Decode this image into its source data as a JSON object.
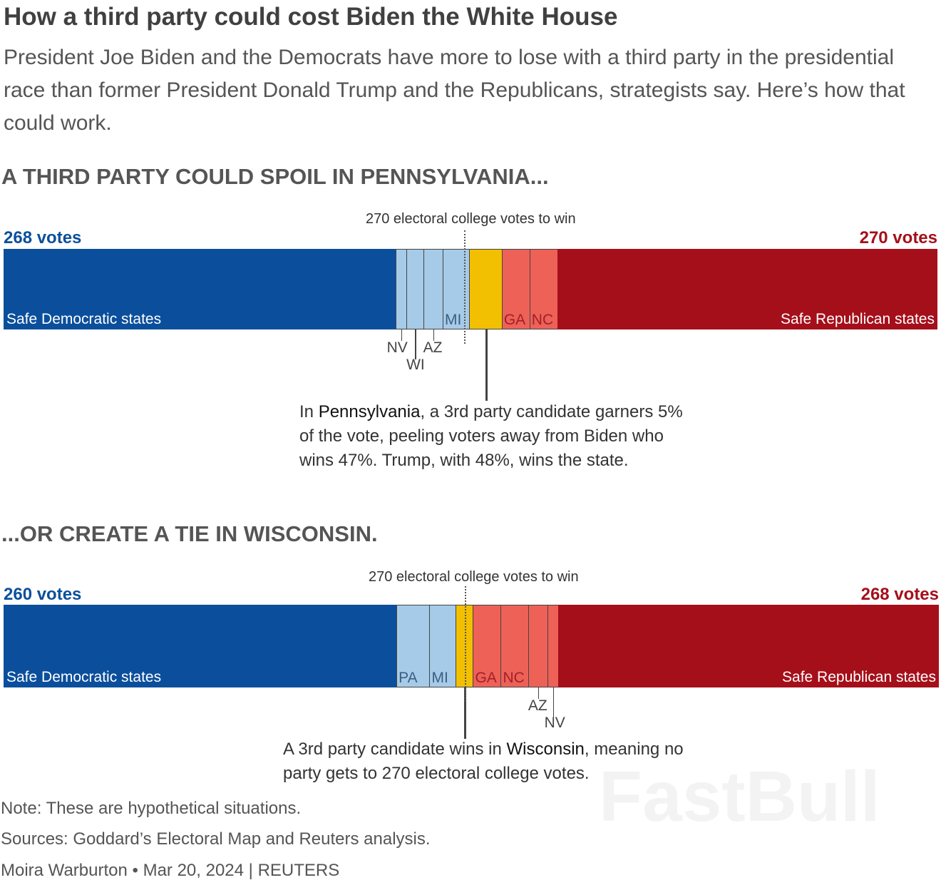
{
  "title": "How a third party could cost Biden the White House",
  "subtitle": "President Joe Biden and the Democrats have more to lose with a third party in the presidential race than former President Donald Trump and the Republicans, strategists say. Here’s how that could work.",
  "colors": {
    "safe_dem": "#0b4f9c",
    "lean_dem": "#a6cbe8",
    "third": "#f2c000",
    "lean_rep": "#ee6157",
    "safe_rep": "#a50f1a"
  },
  "chart_data": [
    {
      "type": "bar",
      "orientation": "stacked-horizontal",
      "title": "A THIRD PARTY COULD SPOIL IN PENNSYLVANIA...",
      "threshold": 270,
      "threshold_label": "270 electoral college votes to win",
      "total": 538,
      "dem_label": "268 votes",
      "rep_label": "270 votes",
      "safe_dem_label": "Safe Democratic states",
      "safe_rep_label": "Safe Republican states",
      "segments": [
        {
          "state": "Safe Democratic states",
          "ev": 226,
          "party": "safe_dem"
        },
        {
          "state": "NV",
          "ev": 6,
          "party": "lean_dem",
          "label": "below"
        },
        {
          "state": "WI",
          "ev": 10,
          "party": "lean_dem",
          "label": "below"
        },
        {
          "state": "AZ",
          "ev": 11,
          "party": "lean_dem",
          "label": "below"
        },
        {
          "state": "MI",
          "ev": 15,
          "party": "lean_dem",
          "label": "inside"
        },
        {
          "state": "PA",
          "ev": 19,
          "party": "third",
          "label": "none"
        },
        {
          "state": "GA",
          "ev": 16,
          "party": "lean_rep",
          "label": "inside"
        },
        {
          "state": "NC",
          "ev": 16,
          "party": "lean_rep",
          "label": "inside"
        },
        {
          "state": "Safe Republican states",
          "ev": 219,
          "party": "safe_rep"
        }
      ],
      "annotation": {
        "pre": "In ",
        "bold": "Pennsylvania",
        "post": ", a 3rd party candidate garners 5% of the vote, peeling voters away from Biden who wins 47%. Trump, with 48%, wins the state."
      }
    },
    {
      "type": "bar",
      "orientation": "stacked-horizontal",
      "title": "...OR CREATE A TIE IN WISCONSIN.",
      "threshold": 270,
      "threshold_label": "270 electoral college votes to win",
      "total": 538,
      "dem_label": "260 votes",
      "rep_label": "268 votes",
      "safe_dem_label": "Safe Democratic states",
      "safe_rep_label": "Safe Republican states",
      "segments": [
        {
          "state": "Safe Democratic states",
          "ev": 226,
          "party": "safe_dem"
        },
        {
          "state": "PA",
          "ev": 19,
          "party": "lean_dem",
          "label": "inside"
        },
        {
          "state": "MI",
          "ev": 15,
          "party": "lean_dem",
          "label": "inside"
        },
        {
          "state": "WI",
          "ev": 10,
          "party": "third",
          "label": "none"
        },
        {
          "state": "GA",
          "ev": 16,
          "party": "lean_rep",
          "label": "inside"
        },
        {
          "state": "NC",
          "ev": 16,
          "party": "lean_rep",
          "label": "inside"
        },
        {
          "state": "AZ",
          "ev": 11,
          "party": "lean_rep",
          "label": "below"
        },
        {
          "state": "NV",
          "ev": 6,
          "party": "lean_rep",
          "label": "below"
        },
        {
          "state": "Safe Republican states",
          "ev": 219,
          "party": "safe_rep"
        }
      ],
      "annotation": {
        "pre": "A 3rd party candidate wins in ",
        "bold": "Wisconsin",
        "post": ", meaning no party gets to 270 electoral college votes."
      }
    }
  ],
  "footer": {
    "note": "Note: These are hypothetical situations.",
    "sources": "Sources: Goddard’s Electoral Map and Reuters analysis.",
    "byline": "Moira Warburton • Mar 20, 2024 | REUTERS"
  },
  "watermark": "FastBull"
}
